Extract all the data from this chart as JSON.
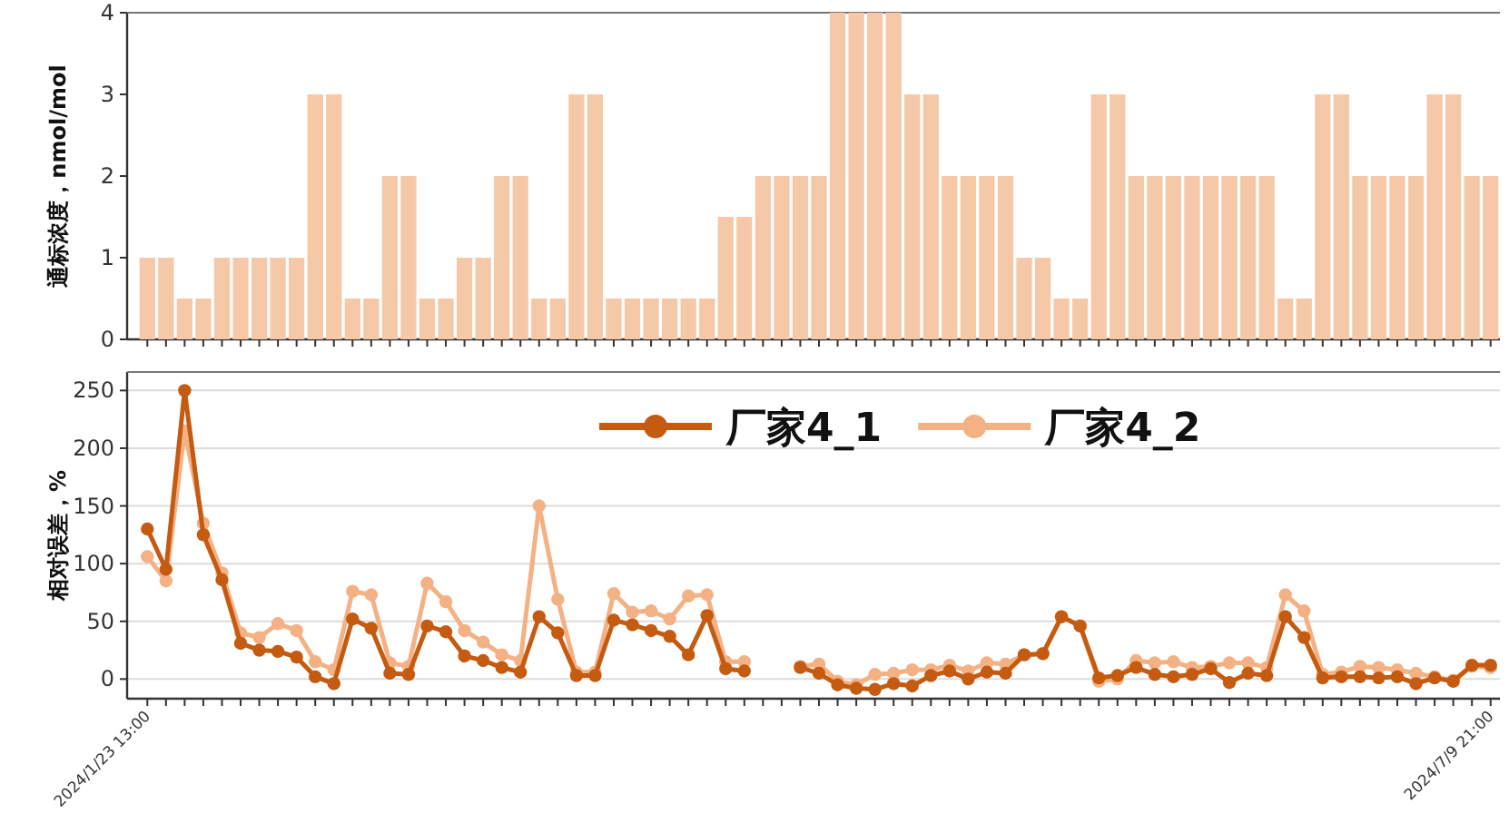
{
  "chart_data": [
    {
      "type": "bar",
      "ylabel": "通标浓度，nmol/mol",
      "color": "#f5c9a7",
      "ylim": [
        0,
        4
      ],
      "yticks": [
        0,
        1,
        2,
        3,
        4
      ],
      "tick_labels": "y",
      "categories": [
        "2024/1/23 13:00",
        null,
        null,
        null,
        null,
        null,
        null,
        null,
        null,
        null,
        null,
        null,
        null,
        null,
        null,
        null,
        null,
        null,
        null,
        null,
        null,
        null,
        null,
        null,
        null,
        null,
        null,
        null,
        null,
        null,
        null,
        null,
        null,
        null,
        null,
        null,
        null,
        null,
        null,
        null,
        null,
        null,
        null,
        null,
        null,
        null,
        null,
        null,
        null,
        null,
        null,
        null,
        null,
        null,
        null,
        null,
        null,
        null,
        null,
        null,
        null,
        null,
        null,
        null,
        null,
        null,
        null,
        null,
        null,
        null,
        null,
        null,
        "2024/7/9 21:00"
      ],
      "values": [
        1,
        1,
        0.5,
        0.5,
        1,
        1,
        1,
        1,
        1,
        3,
        3,
        0.5,
        0.5,
        2,
        2,
        0.5,
        0.5,
        1,
        1,
        2,
        2,
        0.5,
        0.5,
        3,
        3,
        0.5,
        0.5,
        0.5,
        0.5,
        0.5,
        0.5,
        1.5,
        1.5,
        2,
        2,
        2,
        2,
        4,
        4,
        4,
        4,
        3,
        3,
        2,
        2,
        2,
        2,
        1,
        1,
        0.5,
        0.5,
        3,
        3,
        2,
        2,
        2,
        2,
        2,
        2,
        2,
        2,
        0.5,
        0.5,
        3,
        3,
        2,
        2,
        2,
        2,
        3,
        3,
        2,
        2
      ]
    },
    {
      "type": "line",
      "ylabel": "相对误差，%",
      "ylim": [
        -17,
        266
      ],
      "yticks": [
        0,
        50,
        100,
        150,
        200,
        250
      ],
      "grid": "y",
      "legend": "top",
      "marker": "circle",
      "line_style": "solid",
      "categories": [
        "2024/1/23 13:00",
        null,
        null,
        null,
        null,
        null,
        null,
        null,
        null,
        null,
        null,
        null,
        null,
        null,
        null,
        null,
        null,
        null,
        null,
        null,
        null,
        null,
        null,
        null,
        null,
        null,
        null,
        null,
        null,
        null,
        null,
        null,
        null,
        null,
        null,
        null,
        null,
        null,
        null,
        null,
        null,
        null,
        null,
        null,
        null,
        null,
        null,
        null,
        null,
        null,
        null,
        null,
        null,
        null,
        null,
        null,
        null,
        null,
        null,
        null,
        null,
        null,
        null,
        null,
        null,
        null,
        null,
        null,
        null,
        null,
        null,
        null,
        "2024/7/9 21:00"
      ],
      "series": [
        {
          "name": "厂家4_1",
          "color": "#c55a11",
          "values": [
            130,
            95,
            250,
            125,
            86,
            31,
            25,
            24,
            19,
            2,
            -4,
            52,
            44,
            5,
            4,
            46,
            41,
            20,
            16,
            10,
            6,
            54,
            40,
            3,
            3,
            51,
            47,
            42,
            37,
            21,
            55,
            9,
            7,
            null,
            null,
            10,
            5,
            -5,
            -8,
            -9,
            -4,
            -6,
            3,
            7,
            0,
            6,
            5,
            21,
            22,
            54,
            46,
            1,
            3,
            10,
            4,
            2,
            4,
            9,
            -3,
            5,
            3,
            54,
            36,
            1,
            2,
            2,
            1,
            2,
            -4,
            1,
            -2,
            12,
            12
          ]
        },
        {
          "name": "厂家4_2",
          "color": "#f4b183",
          "values": [
            106,
            85,
            215,
            135,
            92,
            40,
            36,
            48,
            42,
            15,
            8,
            76,
            73,
            14,
            11,
            83,
            67,
            42,
            32,
            21,
            16,
            150,
            69,
            6,
            6,
            74,
            58,
            59,
            52,
            72,
            73,
            15,
            15,
            null,
            null,
            11,
            13,
            -2,
            -5,
            4,
            5,
            8,
            8,
            12,
            7,
            14,
            13,
            21,
            22,
            54,
            46,
            -2,
            0,
            16,
            14,
            15,
            10,
            11,
            14,
            14,
            10,
            73,
            59,
            4,
            6,
            11,
            10,
            8,
            5,
            2,
            -1,
            11,
            10
          ]
        }
      ]
    }
  ]
}
